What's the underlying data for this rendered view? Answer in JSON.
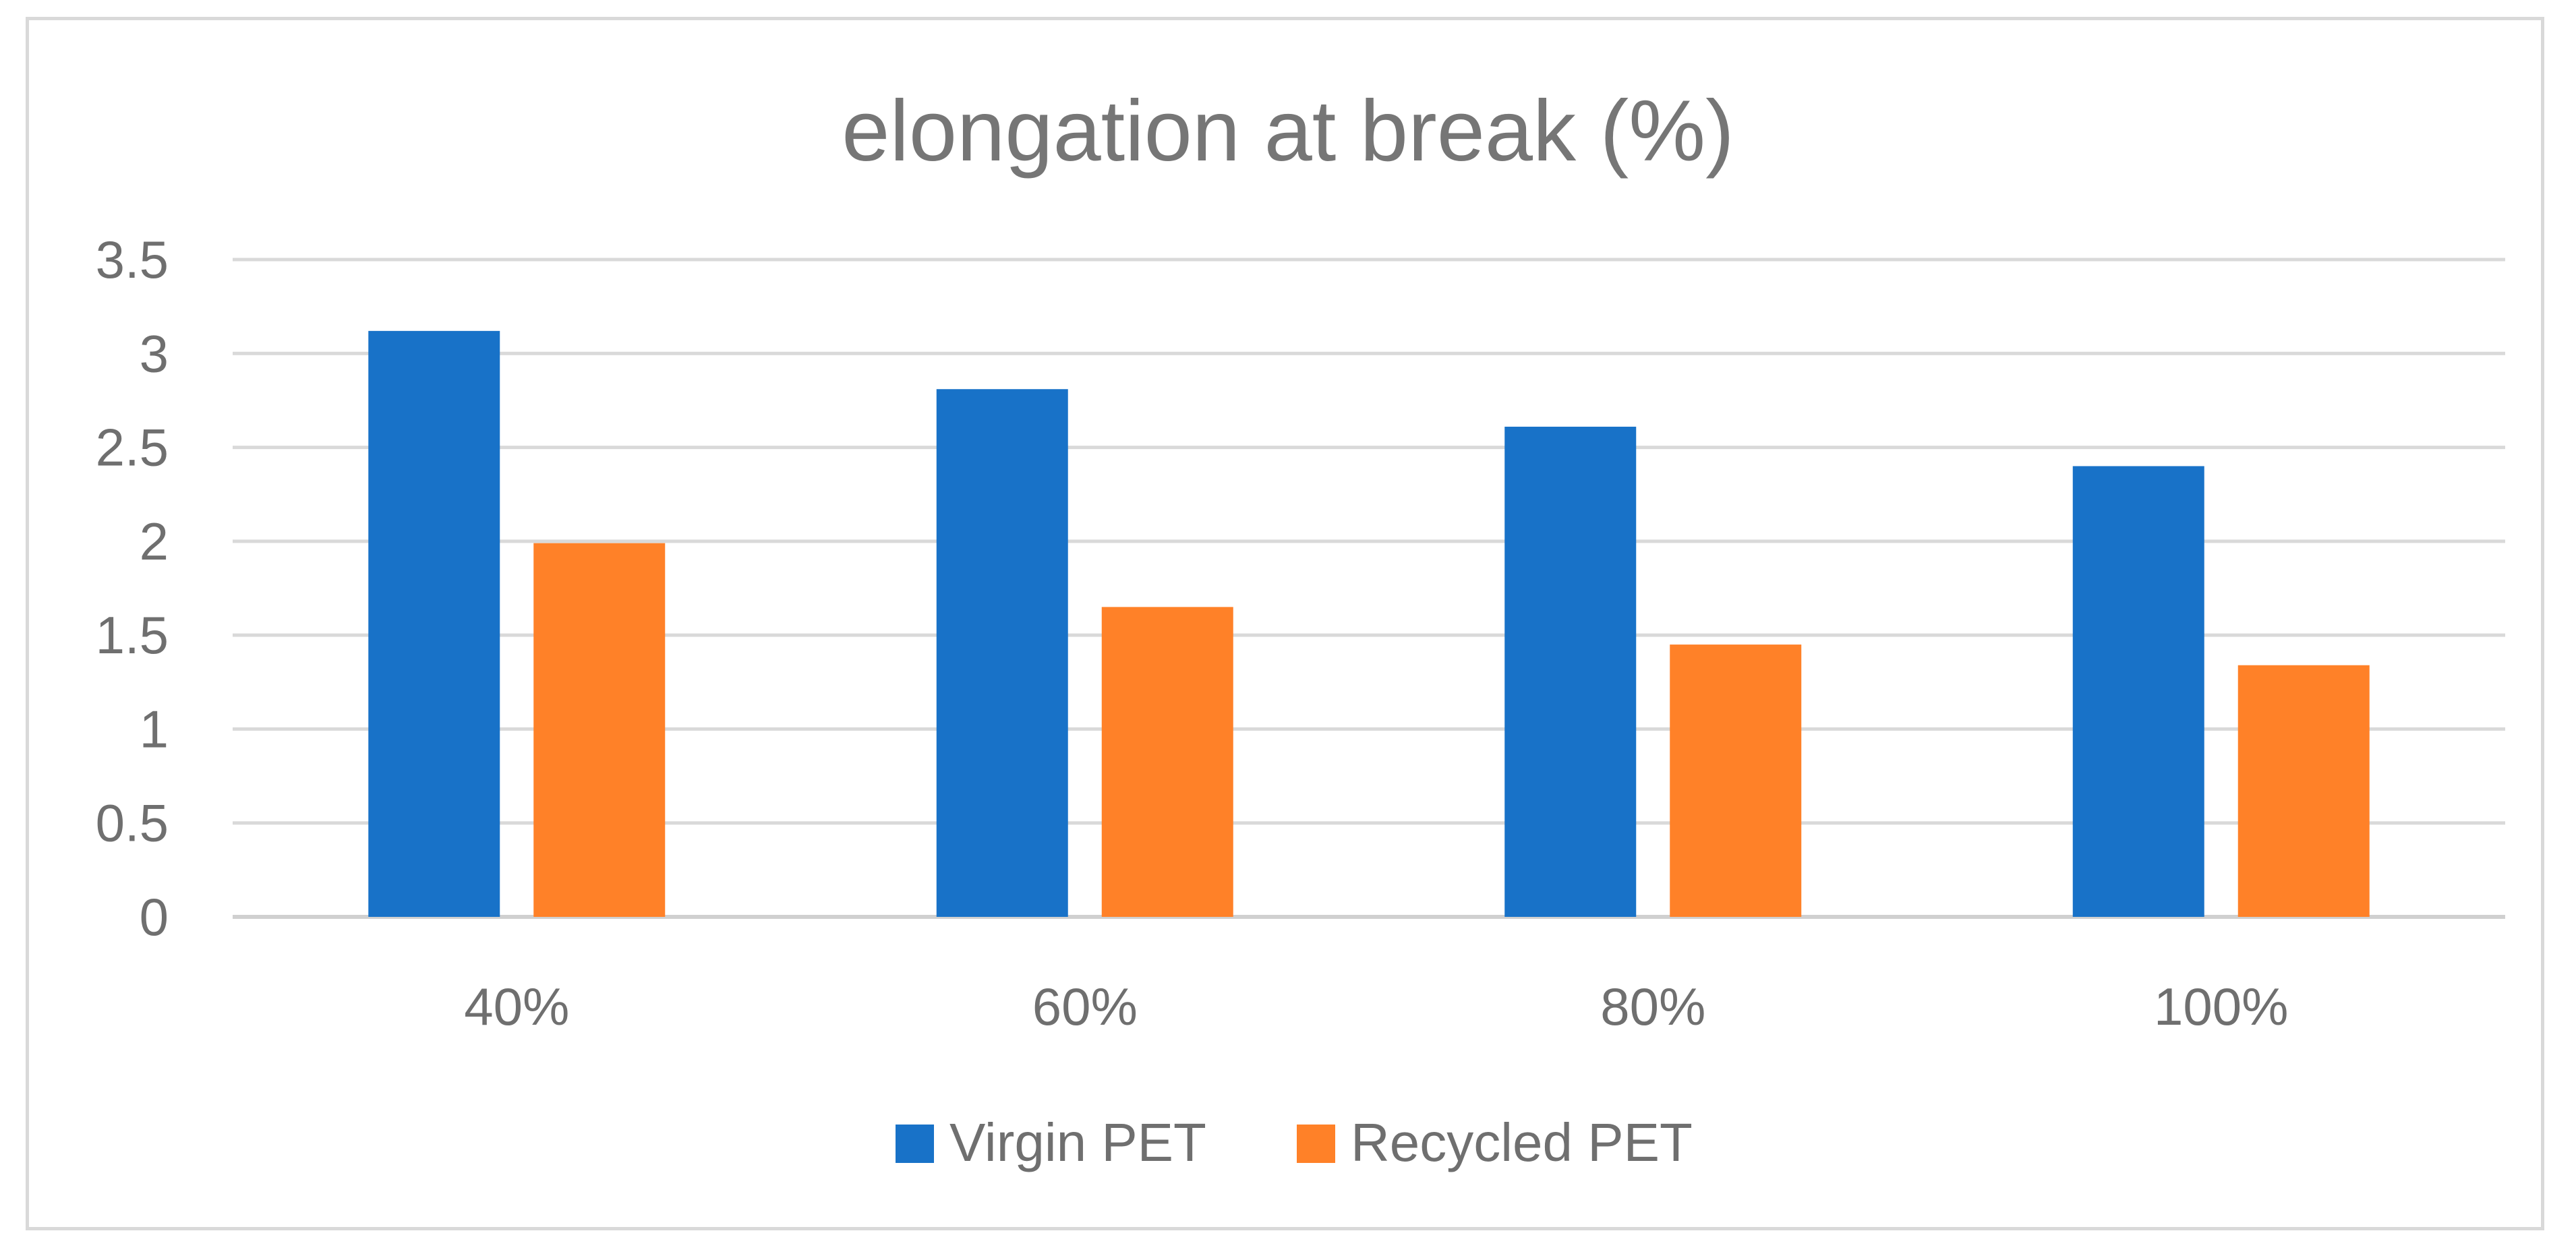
{
  "chart_data": {
    "type": "bar",
    "title": "elongation at break (%)",
    "xlabel": "",
    "ylabel": "",
    "categories": [
      "40%",
      "60%",
      "80%",
      "100%"
    ],
    "series": [
      {
        "name": "Virgin PET",
        "color": "#1872C8",
        "values": [
          3.12,
          2.81,
          2.61,
          2.4
        ]
      },
      {
        "name": "Recycled PET",
        "color": "#FF8128",
        "values": [
          1.99,
          1.65,
          1.45,
          1.34
        ]
      }
    ],
    "ylim": [
      0,
      3.5
    ],
    "yticks": [
      "0",
      "0.5",
      "1",
      "1.5",
      "2",
      "2.5",
      "3",
      "3.5"
    ],
    "grid": true,
    "legend_position": "bottom"
  }
}
